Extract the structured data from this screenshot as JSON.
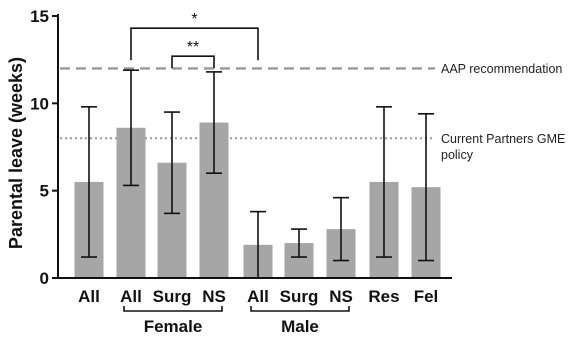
{
  "chart_data": {
    "type": "bar",
    "title": "",
    "ylabel": "Parental leave (weeks)",
    "xlabel": "",
    "ylim": [
      0,
      15
    ],
    "yticks": [
      0,
      5,
      10,
      15
    ],
    "grid": false,
    "bar_color": "#a6a6a6",
    "categories": [
      "All",
      "All",
      "Surg",
      "NS",
      "All",
      "Surg",
      "NS",
      "Res",
      "Fel"
    ],
    "values": [
      5.5,
      8.6,
      6.6,
      8.9,
      1.9,
      2.0,
      2.8,
      5.5,
      5.2
    ],
    "error_low": [
      1.2,
      5.3,
      3.7,
      6.0,
      0.0,
      1.2,
      1.0,
      1.2,
      1.0
    ],
    "error_high": [
      9.8,
      11.9,
      9.5,
      11.8,
      3.8,
      2.8,
      4.6,
      9.8,
      9.4
    ],
    "groups": [
      {
        "label": "Female",
        "from": 1,
        "to": 3
      },
      {
        "label": "Male",
        "from": 4,
        "to": 6
      }
    ],
    "reference_lines": [
      {
        "label": "AAP recommendation",
        "value": 12,
        "style": "dashed",
        "color": "#999999"
      },
      {
        "label": "Current Partners GME policy",
        "value": 8,
        "style": "dotted",
        "color": "#999999"
      }
    ],
    "significance": [
      {
        "label": "*",
        "from": 1,
        "to": 4,
        "y": 14.3
      },
      {
        "label": "**",
        "from": 2,
        "to": 3,
        "y": 12.7
      }
    ]
  }
}
